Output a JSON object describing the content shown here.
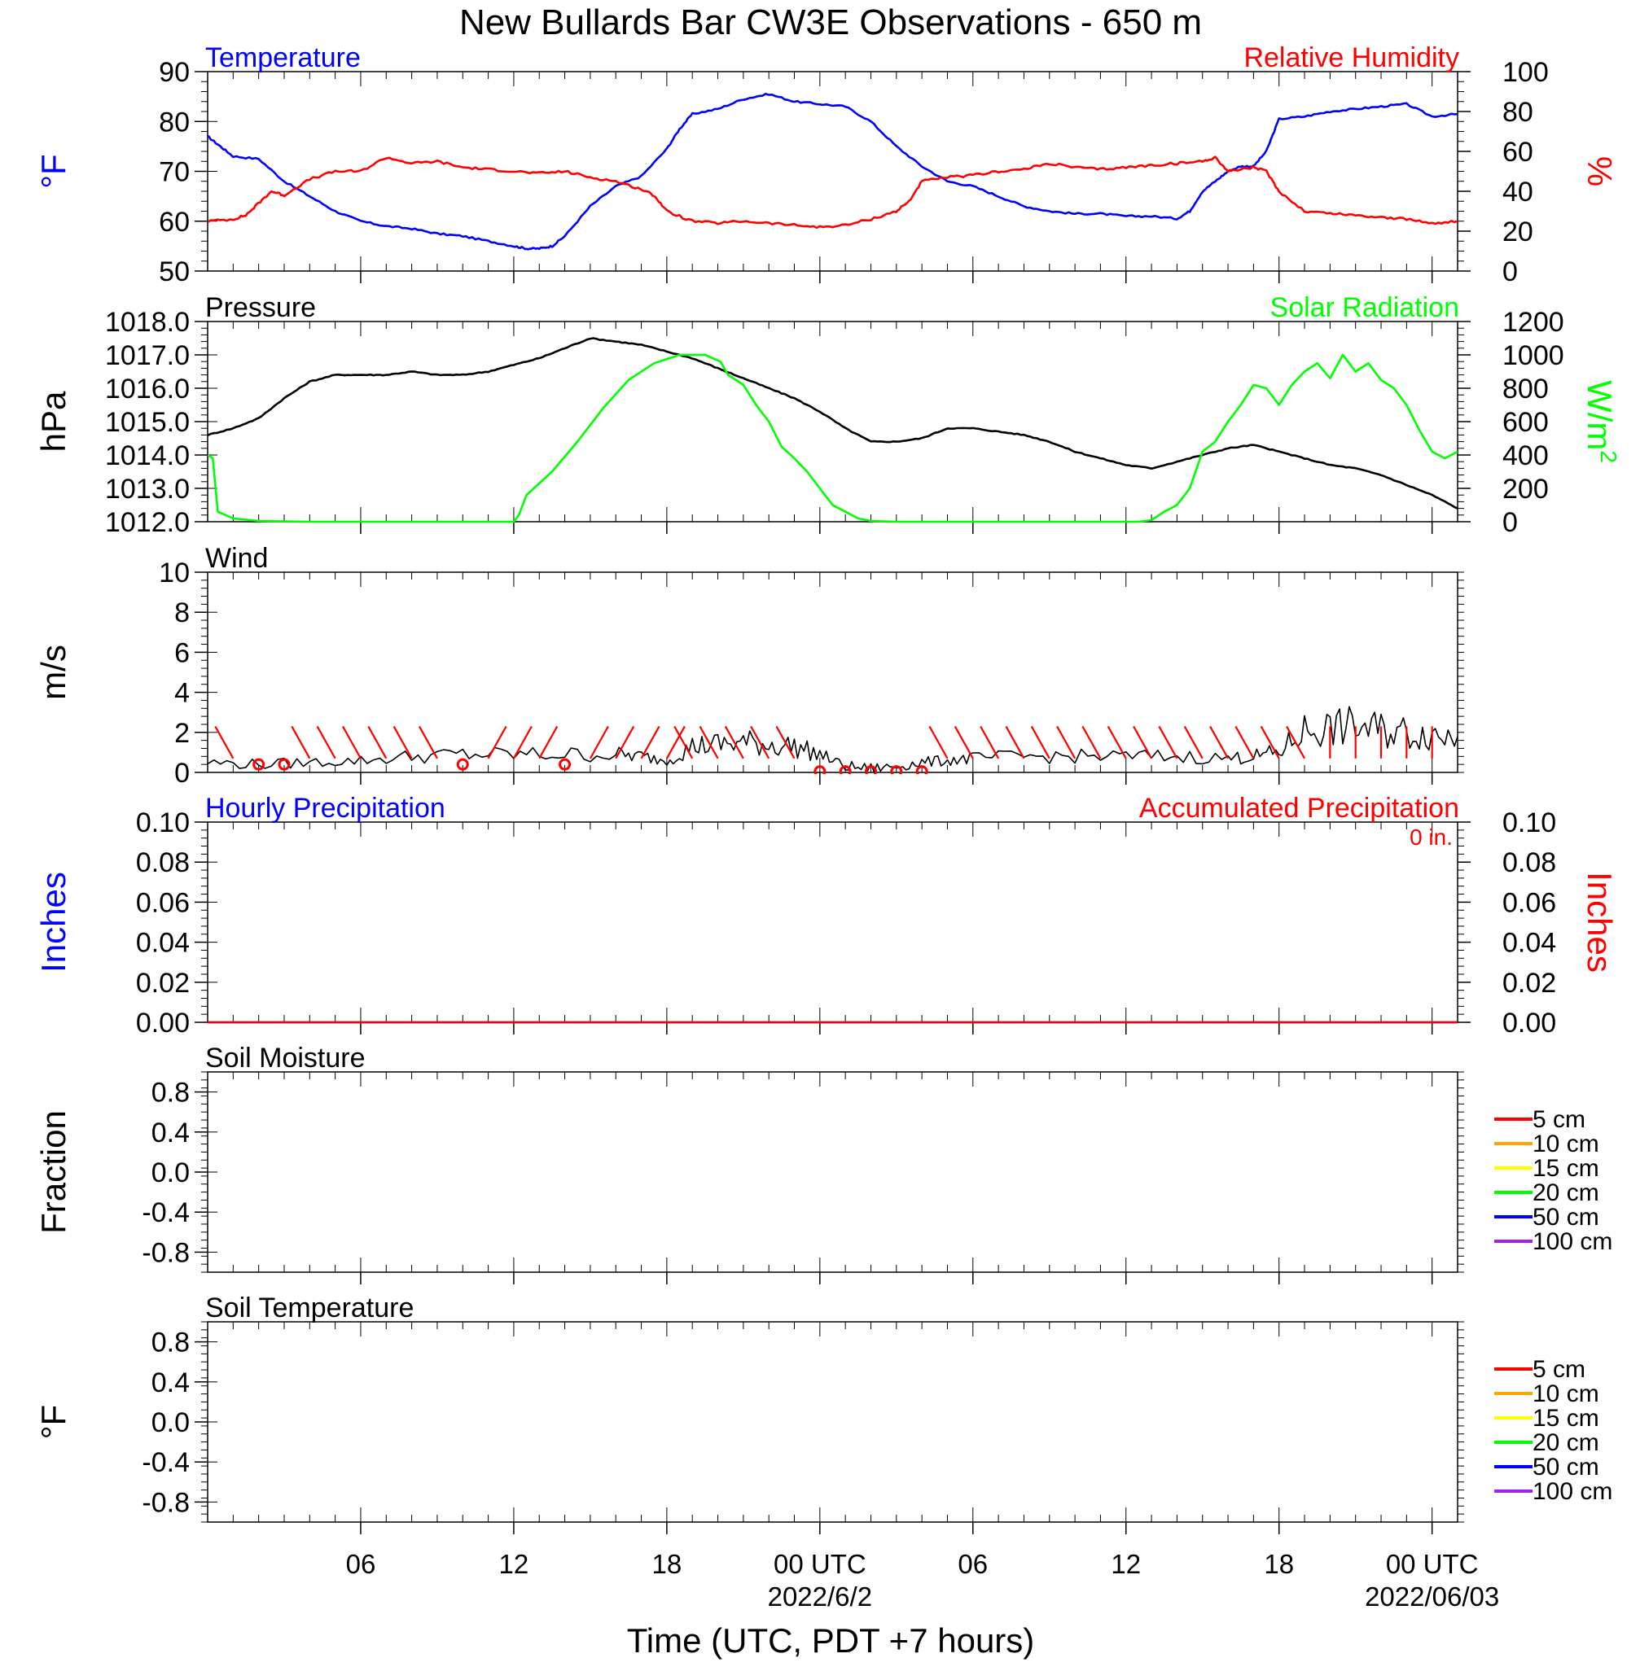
{
  "title": "New Bullards Bar CW3E Observations - 650 m",
  "xlabel": "Time (UTC, PDT +7 hours)",
  "colors": {
    "temperature": "#0000ff",
    "humidity": "#ff0000",
    "pressure": "#000000",
    "solar": "#00ff00",
    "wind_speed": "#000000",
    "wind_barb": "#ff0000",
    "hourly_precip": "#0000ff",
    "accum_precip": "#ff0000"
  },
  "time_axis": {
    "range_hours": [
      -24,
      25
    ],
    "ticks": [
      {
        "h": -18,
        "label": "06",
        "sub": ""
      },
      {
        "h": -12,
        "label": "12",
        "sub": ""
      },
      {
        "h": -6,
        "label": "18",
        "sub": ""
      },
      {
        "h": 0,
        "label": "00 UTC",
        "sub": "2022/6/2"
      },
      {
        "h": 6,
        "label": "06",
        "sub": ""
      },
      {
        "h": 12,
        "label": "12",
        "sub": ""
      },
      {
        "h": 18,
        "label": "18",
        "sub": ""
      },
      {
        "h": 24,
        "label": "00 UTC",
        "sub": "2022/06/03"
      }
    ]
  },
  "chart_data": [
    {
      "type": "line",
      "panel": "temperature-humidity",
      "left_title": "Temperature",
      "right_title": "Relative Humidity",
      "ylabel_left": "°F",
      "ylabel_right": "%",
      "ylim_left": [
        50,
        90
      ],
      "yticks_left": [
        "50",
        "60",
        "70",
        "80",
        "90"
      ],
      "ylim_right": [
        0,
        100
      ],
      "yticks_right": [
        "0",
        "20",
        "40",
        "60",
        "80",
        "100"
      ],
      "series": [
        {
          "name": "Temperature",
          "axis": "left",
          "x": [
            -24,
            -23.5,
            -23,
            -22,
            -21,
            -20,
            -19,
            -18,
            -17,
            -16,
            -15,
            -14,
            -13,
            -12,
            -11.5,
            -11,
            -10.5,
            -10,
            -9,
            -8,
            -7,
            -6,
            -5.5,
            -5,
            -4,
            -3,
            -2,
            -1,
            0,
            1,
            2,
            3,
            4,
            5,
            6,
            7,
            8,
            9,
            10,
            11,
            12,
            13,
            14,
            14.5,
            15,
            15.5,
            16,
            16.5,
            17,
            17.5,
            18,
            19,
            20,
            21,
            22,
            23,
            24,
            25
          ],
          "y": [
            77,
            75,
            73,
            72.5,
            68,
            65,
            62,
            60,
            59,
            58.5,
            57.5,
            57,
            56,
            55,
            54.5,
            54.5,
            55,
            57,
            63,
            67,
            69,
            74.5,
            78.5,
            81.5,
            82.5,
            84.5,
            85.5,
            84,
            83.5,
            83,
            80,
            75,
            71,
            68,
            67,
            65,
            63,
            62,
            61.5,
            61.5,
            61,
            61,
            60.5,
            62,
            66,
            68,
            70,
            71,
            71,
            74,
            80.5,
            81,
            82,
            82.5,
            83,
            83.5,
            81,
            81.5
          ]
        },
        {
          "name": "Relative Humidity",
          "axis": "right",
          "x": [
            -24,
            -23,
            -22.5,
            -22,
            -21.5,
            -21,
            -20,
            -19,
            -18,
            -17,
            -16,
            -15,
            -14,
            -13,
            -12,
            -11,
            -10,
            -9,
            -8,
            -7,
            -6.5,
            -6,
            -5,
            -4,
            -3,
            -2,
            -1,
            0,
            1,
            2,
            3,
            3.5,
            4,
            5,
            6,
            7,
            8,
            9,
            10,
            11,
            12,
            13,
            14,
            15,
            15.5,
            16,
            17,
            17.5,
            18,
            19,
            20,
            21,
            22,
            23,
            24,
            25
          ],
          "y": [
            25,
            26,
            28,
            34,
            40,
            38,
            46,
            50,
            50,
            57,
            54,
            55,
            52,
            51,
            50,
            49,
            50,
            47,
            45,
            41,
            38,
            30,
            25,
            24,
            25,
            24,
            23,
            22,
            23,
            26,
            30,
            35,
            45,
            47,
            48,
            50,
            51,
            54,
            52,
            51,
            52,
            53,
            54,
            55,
            57,
            50,
            52,
            50,
            40,
            30,
            29,
            28,
            27,
            26,
            24,
            25
          ]
        }
      ]
    },
    {
      "type": "line",
      "panel": "pressure-solar",
      "left_title": "Pressure",
      "right_title": "Solar Radiation",
      "ylabel_left": "hPa",
      "ylabel_right": "W/m",
      "ylabel_right_sup": "2",
      "ylim_left": [
        1012.0,
        1018.0
      ],
      "yticks_left": [
        "1012.0",
        "1013.0",
        "1014.0",
        "1015.0",
        "1016.0",
        "1017.0",
        "1018.0"
      ],
      "ylim_right": [
        0,
        1200
      ],
      "yticks_right": [
        "0",
        "200",
        "400",
        "600",
        "800",
        "1000",
        "1200"
      ],
      "series": [
        {
          "name": "Pressure",
          "axis": "left",
          "x": [
            -24,
            -23,
            -22,
            -21,
            -20,
            -19,
            -18,
            -17,
            -16,
            -15,
            -14,
            -13,
            -12,
            -11,
            -10,
            -9,
            -8,
            -7,
            -6,
            -5,
            -4,
            -3,
            -2,
            -1,
            0,
            1,
            2,
            3,
            4,
            5,
            6,
            7,
            8,
            9,
            10,
            11,
            12,
            13,
            14,
            15,
            16,
            17,
            18,
            19,
            20,
            21,
            22,
            23,
            24,
            25
          ],
          "y": [
            1014.6,
            1014.8,
            1015.1,
            1015.7,
            1016.2,
            1016.4,
            1016.4,
            1016.4,
            1016.5,
            1016.4,
            1016.4,
            1016.5,
            1016.7,
            1016.9,
            1017.2,
            1017.5,
            1017.4,
            1017.3,
            1017.1,
            1016.9,
            1016.6,
            1016.3,
            1016.0,
            1015.7,
            1015.3,
            1014.8,
            1014.4,
            1014.4,
            1014.5,
            1014.8,
            1014.8,
            1014.7,
            1014.6,
            1014.4,
            1014.1,
            1013.9,
            1013.7,
            1013.6,
            1013.8,
            1014.0,
            1014.2,
            1014.3,
            1014.1,
            1013.9,
            1013.7,
            1013.6,
            1013.4,
            1013.1,
            1012.8,
            1012.4
          ]
        },
        {
          "name": "Solar Radiation",
          "axis": "right",
          "x": [
            -24,
            -23.8,
            -23.6,
            -23,
            -22,
            -20,
            -15,
            -12,
            -11.8,
            -11.5,
            -10.5,
            -9.5,
            -8.5,
            -7.5,
            -6.5,
            -5.5,
            -4.5,
            -3.9,
            -3.6,
            -3,
            -2.5,
            -2,
            -1.5,
            -1,
            -0.5,
            0,
            0.5,
            1,
            1.5,
            2,
            3,
            4,
            6,
            10,
            12,
            12.5,
            13,
            13.5,
            14,
            14.5,
            15,
            15.5,
            16,
            16.5,
            17,
            17.5,
            18,
            18.5,
            19,
            19.5,
            20,
            20.5,
            21,
            21.5,
            22,
            22.5,
            23,
            23.5,
            24,
            24.5,
            25
          ],
          "y": [
            400,
            380,
            60,
            20,
            5,
            0,
            0,
            0,
            40,
            160,
            300,
            480,
            680,
            850,
            950,
            1000,
            1000,
            960,
            880,
            820,
            700,
            600,
            450,
            380,
            300,
            200,
            100,
            60,
            20,
            5,
            0,
            0,
            0,
            0,
            0,
            0,
            10,
            60,
            100,
            200,
            420,
            480,
            600,
            700,
            820,
            800,
            700,
            820,
            900,
            950,
            860,
            1000,
            900,
            950,
            850,
            800,
            700,
            550,
            420,
            380,
            420
          ]
        }
      ]
    },
    {
      "type": "line",
      "panel": "wind",
      "left_title": "Wind",
      "ylabel_left": "m/s",
      "ylim_left": [
        0,
        10
      ],
      "yticks_left": [
        "0",
        "2",
        "4",
        "6",
        "8",
        "10"
      ],
      "series": [
        {
          "name": "Wind",
          "axis": "left",
          "x": [
            -24,
            -22,
            -20,
            -18,
            -16,
            -14,
            -12,
            -10,
            -8,
            -7,
            -6,
            -5,
            -4,
            -3,
            -2,
            -1,
            0,
            1,
            2,
            3,
            4,
            5,
            6,
            8,
            10,
            12,
            14,
            16,
            17,
            18,
            19,
            20,
            21,
            22,
            23,
            24,
            25
          ],
          "y": [
            0.5,
            0.4,
            0.5,
            0.6,
            0.8,
            0.9,
            0.9,
            0.9,
            0.9,
            0.8,
            0.6,
            1.3,
            1.4,
            1.5,
            1.4,
            1.3,
            0.9,
            0.3,
            0.2,
            0.3,
            0.5,
            0.6,
            0.7,
            0.8,
            0.8,
            0.8,
            0.8,
            0.7,
            0.8,
            1.0,
            2.1,
            2.2,
            2.3,
            2.1,
            2.0,
            1.9,
            1.8
          ]
        }
      ]
    },
    {
      "type": "bar",
      "panel": "precipitation",
      "left_title": "Hourly Precipitation",
      "right_title": "Accumulated Precipitation",
      "annotation": "0 in.",
      "ylabel_left": "Inches",
      "ylabel_right": "Inches",
      "ylim_left": [
        0,
        0.1
      ],
      "yticks_left": [
        "0.00",
        "0.02",
        "0.04",
        "0.06",
        "0.08",
        "0.10"
      ],
      "ylim_right": [
        0,
        0.1
      ],
      "yticks_right": [
        "0.00",
        "0.02",
        "0.04",
        "0.06",
        "0.08",
        "0.10"
      ],
      "series": [
        {
          "name": "Hourly Precipitation",
          "axis": "left",
          "x": [
            -24,
            25
          ],
          "y": [
            0,
            0
          ]
        },
        {
          "name": "Accumulated Precipitation",
          "axis": "right",
          "x": [
            -24,
            25
          ],
          "y": [
            0,
            0
          ]
        }
      ]
    },
    {
      "type": "line",
      "panel": "soil-moisture",
      "left_title": "Soil Moisture",
      "ylabel_left": "Fraction",
      "ylim_left": [
        -1.0,
        1.0
      ],
      "yticks_left": [
        "-0.8",
        "-0.4",
        "0.0",
        "0.4",
        "0.8"
      ],
      "legend": "right",
      "series": [
        {
          "name": "5 cm",
          "color": "#ff0000",
          "values": []
        },
        {
          "name": "10 cm",
          "color": "#ffa500",
          "values": []
        },
        {
          "name": "15 cm",
          "color": "#ffff00",
          "values": []
        },
        {
          "name": "20 cm",
          "color": "#00ff00",
          "values": []
        },
        {
          "name": "50 cm",
          "color": "#0000ff",
          "values": []
        },
        {
          "name": "100 cm",
          "color": "#a020f0",
          "values": []
        }
      ]
    },
    {
      "type": "line",
      "panel": "soil-temperature",
      "left_title": "Soil Temperature",
      "ylabel_left": "°F",
      "ylim_left": [
        -1.0,
        1.0
      ],
      "yticks_left": [
        "-0.8",
        "-0.4",
        "0.0",
        "0.4",
        "0.8"
      ],
      "legend": "right",
      "series": [
        {
          "name": "5 cm",
          "color": "#ff0000",
          "values": []
        },
        {
          "name": "10 cm",
          "color": "#ffa500",
          "values": []
        },
        {
          "name": "15 cm",
          "color": "#ffff00",
          "values": []
        },
        {
          "name": "20 cm",
          "color": "#00ff00",
          "values": []
        },
        {
          "name": "50 cm",
          "color": "#0000ff",
          "values": []
        },
        {
          "name": "100 cm",
          "color": "#a020f0",
          "values": []
        }
      ]
    }
  ]
}
